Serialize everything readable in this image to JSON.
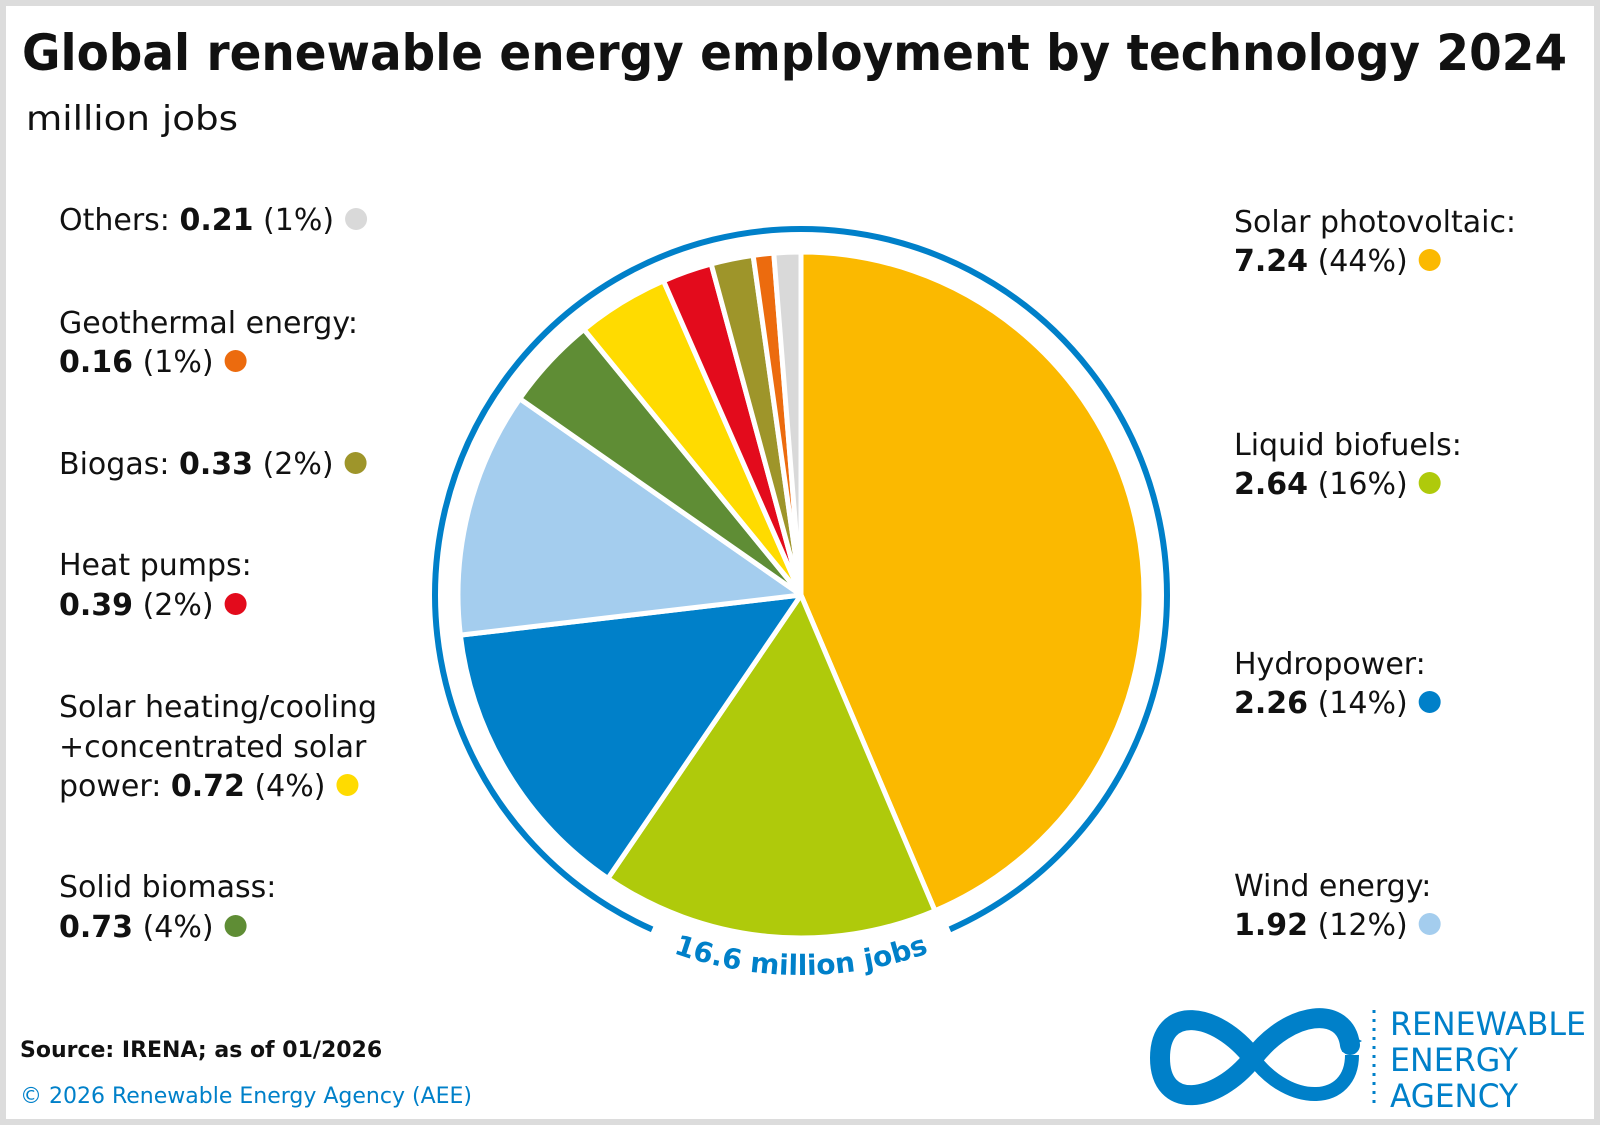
{
  "title": "Global renewable energy employment by technology 2024",
  "subtitle": "million jobs",
  "source": "Source: IRENA; as of 01/2026",
  "copyright": "© 2026 Renewable Energy Agency (AEE)",
  "logo": {
    "line1": "RENEWABLE",
    "line2": "ENERGY",
    "line3": "AGENCY"
  },
  "chart_data": {
    "type": "pie",
    "title": "Global renewable energy employment by technology 2024",
    "unit": "million jobs",
    "total_label": "16.6 million jobs",
    "total": 16.6,
    "slices": [
      {
        "name": "Solar photovoltaic",
        "label": "Solar photovoltaic:",
        "value": 7.24,
        "value_text": "7.24",
        "pct": "(44%)",
        "color": "#fbb900"
      },
      {
        "name": "Liquid biofuels",
        "label": "Liquid biofuels:",
        "value": 2.64,
        "value_text": "2.64",
        "pct": "(16%)",
        "color": "#afca0b"
      },
      {
        "name": "Hydropower",
        "label": "Hydropower:",
        "value": 2.26,
        "value_text": "2.26",
        "pct": "(14%)",
        "color": "#0080c9"
      },
      {
        "name": "Wind energy",
        "label": "Wind energy:",
        "value": 1.92,
        "value_text": "1.92",
        "pct": "(12%)",
        "color": "#a4cdee"
      },
      {
        "name": "Solid biomass",
        "label": "Solid biomass:",
        "value": 0.73,
        "value_text": "0.73",
        "pct": "(4%)",
        "color": "#5f8d35"
      },
      {
        "name": "Solar heating/cooling + concentrated solar power",
        "label": "Solar heating/cooling",
        "label2": "+concentrated solar",
        "label3": "power:",
        "value": 0.72,
        "value_text": "0.72",
        "pct": "(4%)",
        "color": "#ffdb00"
      },
      {
        "name": "Heat pumps",
        "label": "Heat pumps:",
        "value": 0.39,
        "value_text": "0.39",
        "pct": "(2%)",
        "color": "#e30b1c"
      },
      {
        "name": "Biogas",
        "label": "Biogas:",
        "value": 0.33,
        "value_text": "0.33",
        "pct": "(2%)",
        "color": "#9e952a"
      },
      {
        "name": "Geothermal energy",
        "label": "Geothermal energy:",
        "value": 0.16,
        "value_text": "0.16",
        "pct": "(1%)",
        "color": "#ec6b0e"
      },
      {
        "name": "Others",
        "label": "Others:",
        "value": 0.21,
        "value_text": "0.21",
        "pct": "(1%)",
        "color": "#d9d9d9"
      }
    ]
  }
}
